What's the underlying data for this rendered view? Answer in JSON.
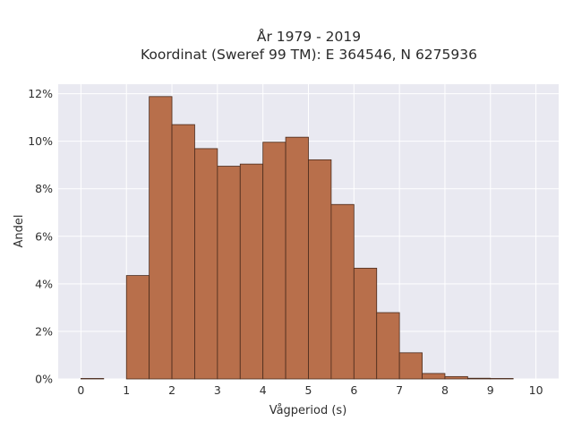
{
  "chart_data": {
    "type": "bar",
    "title": "År 1979 - 2019",
    "subtitle": "Koordinat (Sweref 99 TM): E 364546, N 6275936",
    "xlabel": "Vågperiod (s)",
    "ylabel": "Andel",
    "xlim": [
      -0.5,
      10.5
    ],
    "ylim": [
      0,
      12.4
    ],
    "x_ticks": [
      0,
      1,
      2,
      3,
      4,
      5,
      6,
      7,
      8,
      9,
      10
    ],
    "x_tick_labels": [
      "0",
      "1",
      "2",
      "3",
      "4",
      "5",
      "6",
      "7",
      "8",
      "9",
      "10"
    ],
    "y_ticks": [
      0,
      2,
      4,
      6,
      8,
      10,
      12
    ],
    "y_tick_labels": [
      "0%",
      "2%",
      "4%",
      "6%",
      "8%",
      "10%",
      "12%"
    ],
    "bin_width": 0.5,
    "bins": [
      {
        "x0": 0.0,
        "x1": 0.5,
        "value": 0.02
      },
      {
        "x0": 1.0,
        "x1": 1.5,
        "value": 4.35
      },
      {
        "x0": 1.5,
        "x1": 2.0,
        "value": 11.88
      },
      {
        "x0": 2.0,
        "x1": 2.5,
        "value": 10.7
      },
      {
        "x0": 2.5,
        "x1": 3.0,
        "value": 9.69
      },
      {
        "x0": 3.0,
        "x1": 3.5,
        "value": 8.95
      },
      {
        "x0": 3.5,
        "x1": 4.0,
        "value": 9.04
      },
      {
        "x0": 4.0,
        "x1": 4.5,
        "value": 9.96
      },
      {
        "x0": 4.5,
        "x1": 5.0,
        "value": 10.17
      },
      {
        "x0": 5.0,
        "x1": 5.5,
        "value": 9.22
      },
      {
        "x0": 5.5,
        "x1": 6.0,
        "value": 7.34
      },
      {
        "x0": 6.0,
        "x1": 6.5,
        "value": 4.66
      },
      {
        "x0": 6.5,
        "x1": 7.0,
        "value": 2.79
      },
      {
        "x0": 7.0,
        "x1": 7.5,
        "value": 1.1
      },
      {
        "x0": 7.5,
        "x1": 8.0,
        "value": 0.23
      },
      {
        "x0": 8.0,
        "x1": 8.5,
        "value": 0.1
      },
      {
        "x0": 8.5,
        "x1": 9.0,
        "value": 0.03
      },
      {
        "x0": 9.0,
        "x1": 9.5,
        "value": 0.02
      }
    ],
    "grid": true,
    "legend": "none",
    "colors": {
      "bar_fill": "#b86f4b",
      "bar_edge": "#4a2b1c",
      "plot_background": "#e9e9f1",
      "grid": "#ffffff"
    }
  }
}
